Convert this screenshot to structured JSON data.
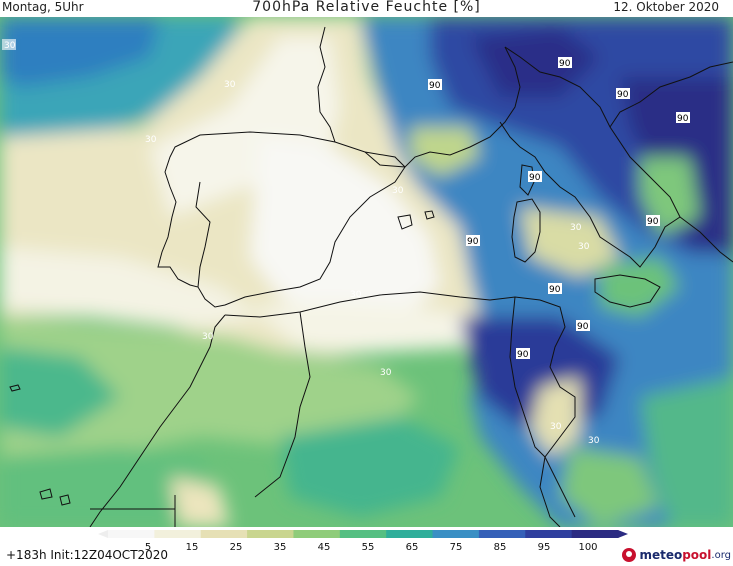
{
  "header": {
    "left": "Montag, 5Uhr",
    "center": "700hPa Relative Feuchte [%]",
    "right": "12. Oktober 2020"
  },
  "footer": {
    "forecast": "+183h  Init:12Z04OCT2020",
    "logo_a": "meteo",
    "logo_b": "pool",
    "logo_c": ".org"
  },
  "legend": {
    "ticks": [
      "5",
      "15",
      "25",
      "35",
      "45",
      "55",
      "65",
      "75",
      "85",
      "95",
      "100"
    ],
    "colors": [
      "#f7f7f7",
      "#f2f0dc",
      "#e6e0b5",
      "#c9d58f",
      "#8fcc7a",
      "#55bf82",
      "#2fae9a",
      "#3a8fc4",
      "#3560b8",
      "#2f3f9e",
      "#2b2b82"
    ]
  },
  "contour_labels": {
    "dry": "30",
    "wet": "90"
  }
}
